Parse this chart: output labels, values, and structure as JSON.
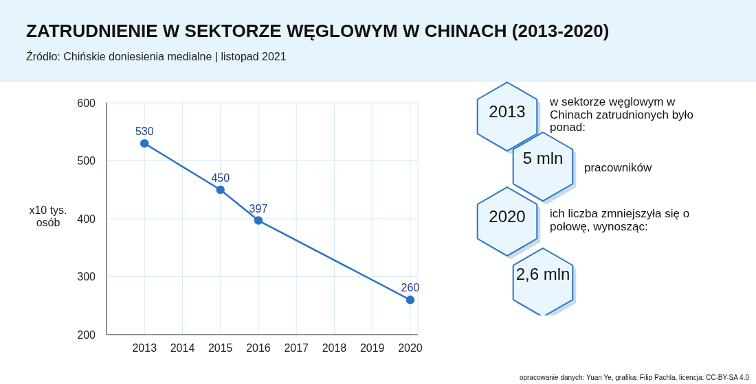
{
  "chart_data": {
    "type": "line",
    "title": "ZATRUDNIENIE W SEKTORZE WĘGLOWYM W CHINACH (2013-2020)",
    "subtitle": "Źródło:  Chińskie doniesienia medialne | listopad 2021",
    "ylabel": "x10 tys. osób",
    "x": [
      2013,
      2015,
      2016,
      2020
    ],
    "series": [
      {
        "color": "#2a73c2",
        "values": [
          530,
          450,
          397,
          260
        ]
      }
    ],
    "xlim": [
      2012,
      2020.2
    ],
    "xticks": [
      2013,
      2014,
      2015,
      2016,
      2017,
      2018,
      2019,
      2020
    ],
    "ylim": [
      200,
      600
    ],
    "yticks": [
      200,
      300,
      400,
      500,
      600
    ],
    "grid": true,
    "marker": "circle",
    "line_style": "solid",
    "data_labels": true,
    "annotations": [
      "2013",
      "w sektorze węglowym w Chinach zatrudnionych było ponad:",
      "5 mln",
      "pracowników",
      "2020",
      "ich liczba zmniejszyła się o połowę, wynosząc:",
      "2,6 mln",
      "opracowanie danych: Yuan Ye, grafika: Filip Pachla, licencja: CC-BY-SA 4.0"
    ]
  }
}
